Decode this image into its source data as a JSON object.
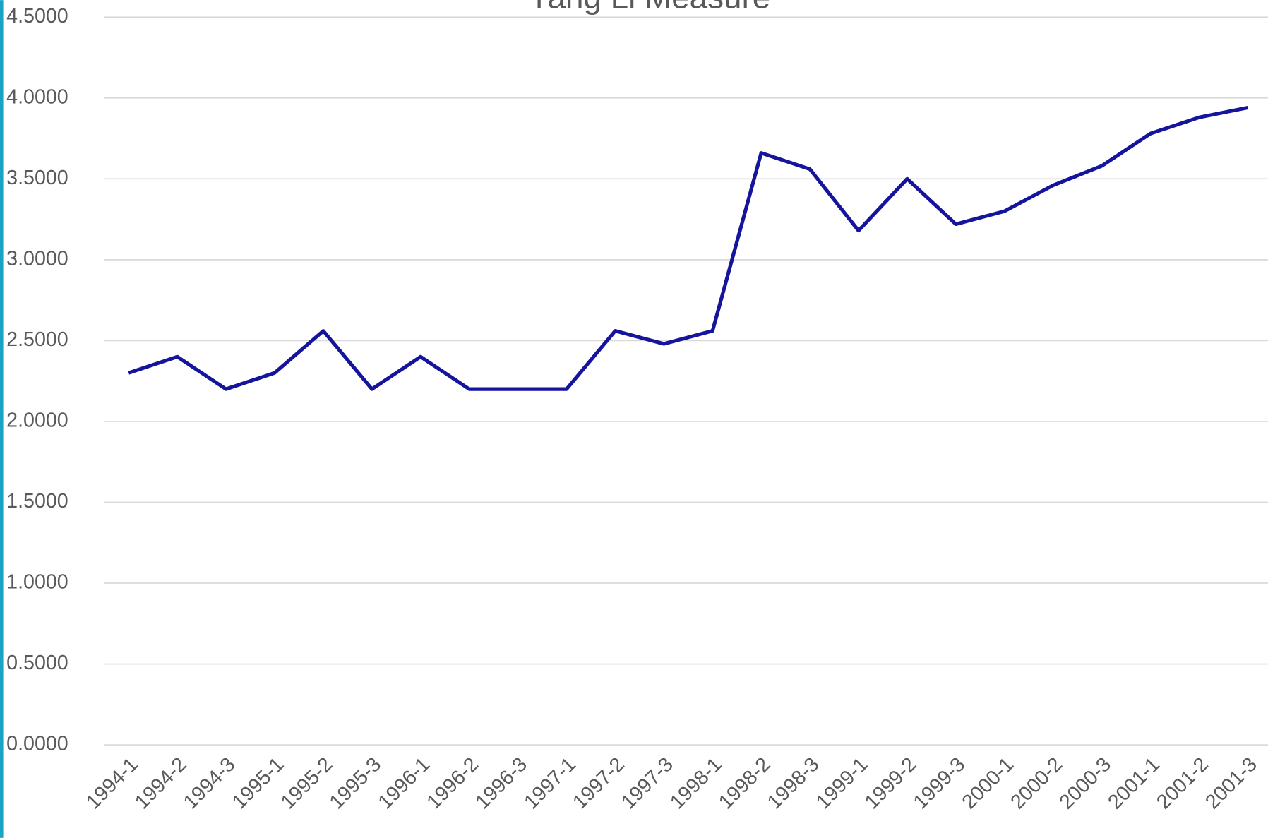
{
  "chart_data": {
    "type": "line",
    "title": "Yang Li Measure",
    "categories": [
      "1994-1",
      "1994-2",
      "1994-3",
      "1995-1",
      "1995-2",
      "1995-3",
      "1996-1",
      "1996-2",
      "1996-3",
      "1997-1",
      "1997-2",
      "1997-3",
      "1998-1",
      "1998-2",
      "1998-3",
      "1999-1",
      "1999-2",
      "1999-3",
      "2000-1",
      "2000-2",
      "2000-3",
      "2001-1",
      "2001-2",
      "2001-3"
    ],
    "series": [
      {
        "color": "#14149c",
        "values": [
          2.3,
          2.4,
          2.2,
          2.3,
          2.56,
          2.2,
          2.4,
          2.2,
          2.2,
          2.2,
          2.56,
          2.48,
          2.56,
          3.66,
          3.56,
          3.18,
          3.5,
          3.22,
          3.3,
          3.46,
          3.58,
          3.78,
          3.88,
          3.94
        ]
      }
    ],
    "ylim": [
      0,
      4.5
    ],
    "yticks": [
      {
        "value": 0,
        "label": "0.0000"
      },
      {
        "value": 0.5,
        "label": "0.5000"
      },
      {
        "value": 1,
        "label": "1.0000"
      },
      {
        "value": 1.5,
        "label": "1.5000"
      },
      {
        "value": 2,
        "label": "2.0000"
      },
      {
        "value": 2.5,
        "label": "2.5000"
      },
      {
        "value": 3,
        "label": "3.0000"
      },
      {
        "value": 3.5,
        "label": "3.5000"
      },
      {
        "value": 4,
        "label": "4.0000"
      },
      {
        "value": 4.5,
        "label": "4.5000"
      }
    ],
    "grid": true
  }
}
